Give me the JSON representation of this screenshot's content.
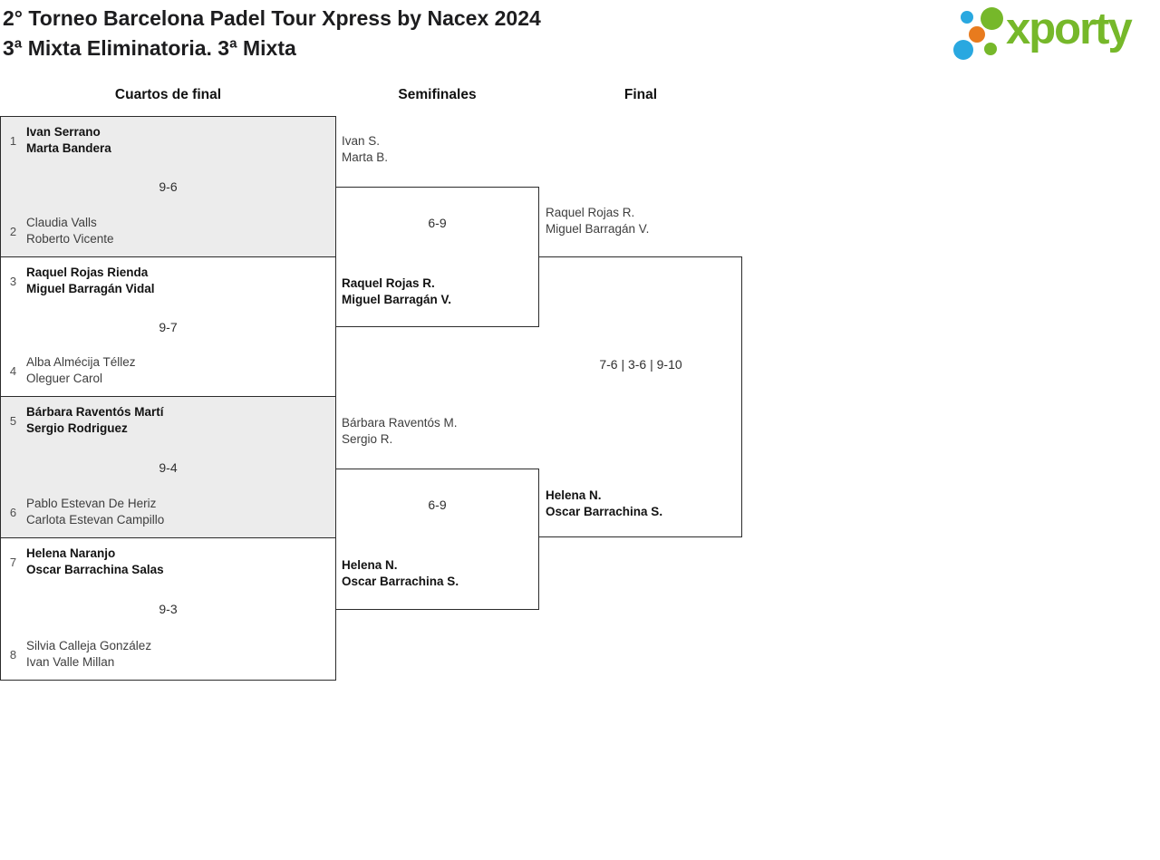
{
  "header": {
    "title_line1": "2° Torneo Barcelona Padel Tour Xpress by Nacex 2024",
    "title_line2": "3ª Mixta Eliminatoria. 3ª Mixta"
  },
  "logo": {
    "wordmark": "xporty",
    "colors": {
      "green": "#76b82a",
      "blue": "#29a8e0",
      "orange": "#e87b1e"
    }
  },
  "colors": {
    "match_shaded_bg": "#ececec",
    "bracket_border": "#2b2b2b",
    "winner_text": "#131313",
    "regular_text": "#3e3e3e"
  },
  "rounds": [
    {
      "label": "Cuartos de final"
    },
    {
      "label": "Semifinales"
    },
    {
      "label": "Final"
    }
  ],
  "quarterfinals": [
    {
      "seed_top": "1",
      "team_top": [
        "Ivan Serrano",
        "Marta Bandera"
      ],
      "score": "9-6",
      "seed_bottom": "2",
      "team_bottom": [
        "Claudia Valls",
        "Roberto Vicente"
      ],
      "winner": "top"
    },
    {
      "seed_top": "3",
      "team_top": [
        "Raquel Rojas Rienda",
        "Miguel Barragán Vidal"
      ],
      "score": "9-7",
      "seed_bottom": "4",
      "team_bottom": [
        "Alba Almécija Téllez",
        "Oleguer Carol"
      ],
      "winner": "top"
    },
    {
      "seed_top": "5",
      "team_top": [
        "Bárbara Raventós Martí",
        "Sergio Rodriguez"
      ],
      "score": "9-4",
      "seed_bottom": "6",
      "team_bottom": [
        "Pablo Estevan De Heriz",
        "Carlota Estevan Campillo"
      ],
      "winner": "top"
    },
    {
      "seed_top": "7",
      "team_top": [
        "Helena Naranjo",
        "Oscar Barrachina Salas"
      ],
      "score": "9-3",
      "seed_bottom": "8",
      "team_bottom": [
        "Silvia Calleja González",
        "Ivan Valle Millan"
      ],
      "winner": "top"
    }
  ],
  "semifinals": [
    {
      "team_top": [
        "Ivan S.",
        "Marta B."
      ],
      "score": "6-9",
      "team_bottom": [
        "Raquel Rojas R.",
        "Miguel Barragán V."
      ],
      "winner": "bottom"
    },
    {
      "team_top": [
        "Bárbara Raventós M.",
        "Sergio R."
      ],
      "score": "6-9",
      "team_bottom": [
        "Helena N.",
        "Oscar Barrachina S."
      ],
      "winner": "bottom"
    }
  ],
  "final": {
    "team_top": [
      "Raquel Rojas R.",
      "Miguel Barragán V."
    ],
    "score": "7-6 | 3-6 | 9-10",
    "team_bottom": [
      "Helena N.",
      "Oscar Barrachina S."
    ],
    "winner": "bottom"
  }
}
